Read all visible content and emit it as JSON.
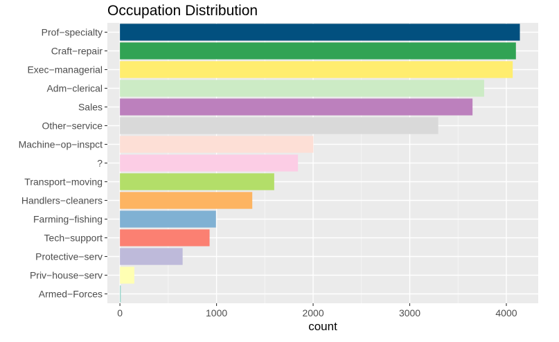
{
  "chart_data": {
    "type": "bar",
    "orientation": "horizontal",
    "title": "Occupation Distribution",
    "xlabel": "count",
    "ylabel": "",
    "xlim": [
      -130,
      4330
    ],
    "x_ticks": [
      0,
      1000,
      2000,
      3000,
      4000
    ],
    "x_tick_labels": [
      "0",
      "1000",
      "2000",
      "3000",
      "4000"
    ],
    "grid": true,
    "legend": "none",
    "categories": [
      "Prof−specialty",
      "Craft−repair",
      "Exec−managerial",
      "Adm−clerical",
      "Sales",
      "Other−service",
      "Machine−op−inspct",
      "?",
      "Transport−moving",
      "Handlers−cleaners",
      "Farming−fishing",
      "Tech−support",
      "Protective−serv",
      "Priv−house−serv",
      "Armed−Forces"
    ],
    "values": [
      4140,
      4099,
      4066,
      3770,
      3650,
      3295,
      2002,
      1843,
      1597,
      1370,
      994,
      928,
      649,
      149,
      9
    ],
    "colors": [
      "#02507f",
      "#31a354",
      "#ffed6f",
      "#ccebc5",
      "#bc80bd",
      "#d9d9d9",
      "#fddfd6",
      "#fccde5",
      "#b3de69",
      "#fdb462",
      "#80b1d3",
      "#fb8072",
      "#bebada",
      "#ffffb3",
      "#8dd3c7"
    ]
  }
}
